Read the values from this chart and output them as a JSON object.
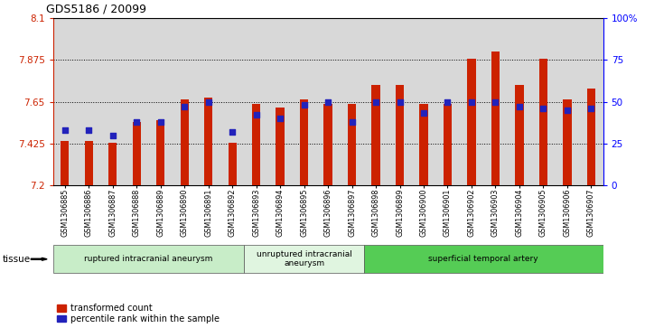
{
  "title": "GDS5186 / 20099",
  "samples": [
    "GSM1306885",
    "GSM1306886",
    "GSM1306887",
    "GSM1306888",
    "GSM1306889",
    "GSM1306890",
    "GSM1306891",
    "GSM1306892",
    "GSM1306893",
    "GSM1306894",
    "GSM1306895",
    "GSM1306896",
    "GSM1306897",
    "GSM1306898",
    "GSM1306899",
    "GSM1306900",
    "GSM1306901",
    "GSM1306902",
    "GSM1306903",
    "GSM1306904",
    "GSM1306905",
    "GSM1306906",
    "GSM1306907"
  ],
  "transformed_count": [
    7.44,
    7.44,
    7.43,
    7.54,
    7.55,
    7.66,
    7.67,
    7.43,
    7.64,
    7.62,
    7.66,
    7.64,
    7.64,
    7.74,
    7.74,
    7.64,
    7.64,
    7.88,
    7.92,
    7.74,
    7.88,
    7.66,
    7.72
  ],
  "percentile_rank": [
    33,
    33,
    30,
    38,
    38,
    47,
    50,
    32,
    42,
    40,
    48,
    50,
    38,
    50,
    50,
    43,
    50,
    50,
    50,
    47,
    46,
    45,
    46
  ],
  "ylim_left": [
    7.2,
    8.1
  ],
  "ylim_right": [
    0,
    100
  ],
  "yticks_left": [
    7.2,
    7.425,
    7.65,
    7.875,
    8.1
  ],
  "yticks_right": [
    0,
    25,
    50,
    75,
    100
  ],
  "ytick_labels_left": [
    "7.2",
    "7.425",
    "7.65",
    "7.875",
    "8.1"
  ],
  "ytick_labels_right": [
    "0",
    "25",
    "50",
    "75",
    "100%"
  ],
  "hlines": [
    7.425,
    7.65,
    7.875
  ],
  "groups": [
    {
      "label": "ruptured intracranial aneurysm",
      "start": 0,
      "end": 8,
      "color": "#c8edc8"
    },
    {
      "label": "unruptured intracranial\naneurysm",
      "start": 8,
      "end": 13,
      "color": "#e0f5e0"
    },
    {
      "label": "superficial temporal artery",
      "start": 13,
      "end": 23,
      "color": "#55cc55"
    }
  ],
  "bar_color": "#cc2200",
  "dot_color": "#2222bb",
  "tissue_label": "tissue",
  "bar_width": 0.35,
  "base_value": 7.2,
  "plot_bgcolor": "#d8d8d8",
  "xtick_bgcolor": "#d0d0d0"
}
